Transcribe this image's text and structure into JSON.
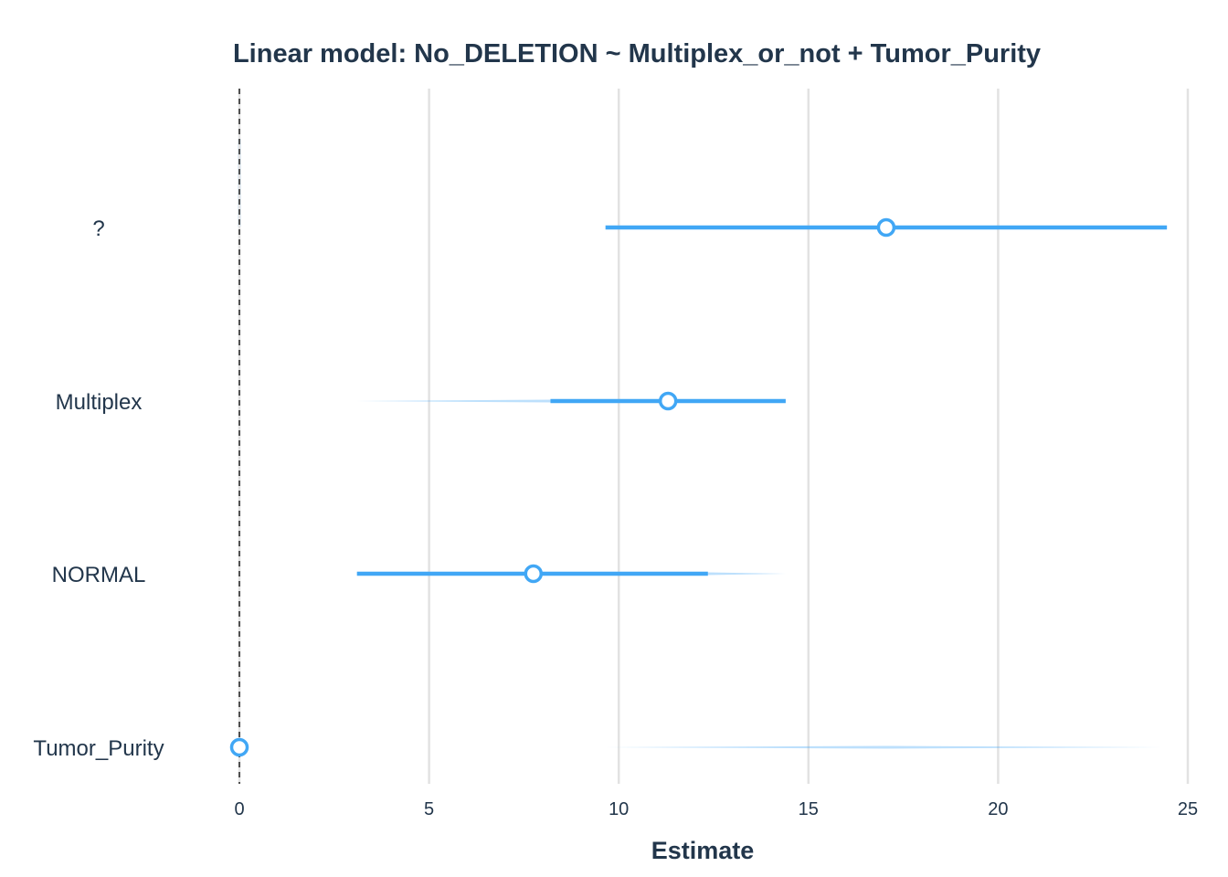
{
  "chart_data": {
    "type": "forest",
    "title": "Linear model: No_DELETION ~ Multiplex_or_not + Tumor_Purity",
    "xlabel": "Estimate",
    "ylabel": "",
    "xlim": [
      0,
      25
    ],
    "xticks": [
      "0",
      "5",
      "10",
      "15",
      "20",
      "25"
    ],
    "reference_line": 0,
    "grid": true,
    "color": "#41a7f5",
    "rows": [
      {
        "label": "?",
        "estimate": 17.05,
        "ci_low": 9.65,
        "ci_high": 24.45,
        "dist_low": 9.65,
        "dist_high": 24.45
      },
      {
        "label": "Multiplex",
        "estimate": 11.3,
        "ci_low": 8.2,
        "ci_high": 14.4,
        "dist_low": 3.1,
        "dist_high": 14.4
      },
      {
        "label": "NORMAL",
        "estimate": 7.75,
        "ci_low": 3.1,
        "ci_high": 12.35,
        "dist_low": 3.1,
        "dist_high": 14.4
      },
      {
        "label": "Tumor_Purity",
        "estimate": 0.0,
        "ci_low": 0.0,
        "ci_high": 0.0,
        "dist_low": 9.65,
        "dist_high": 24.45
      }
    ]
  }
}
